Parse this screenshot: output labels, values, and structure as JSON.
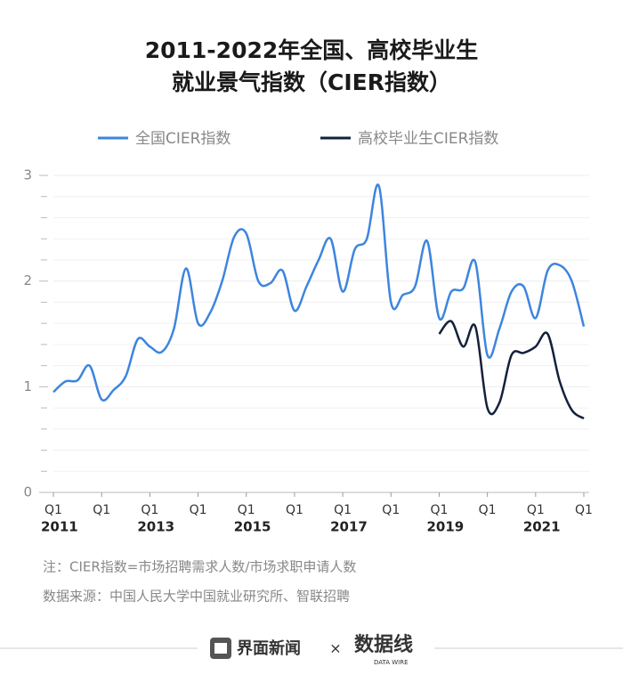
{
  "chart_data": {
    "type": "line",
    "title_lines": [
      "2011-2022年全国、高校毕业生",
      "就业景气指数（CIER指数）"
    ],
    "categories": [
      "Q1",
      null,
      null,
      null,
      "Q1",
      null,
      null,
      null,
      "Q1",
      null,
      null,
      null,
      "Q1",
      null,
      null,
      null,
      "Q1",
      null,
      null,
      null,
      "Q1",
      null,
      null,
      null,
      "Q1",
      null,
      null,
      null,
      "Q1",
      null,
      null,
      null,
      "Q1",
      null,
      null,
      null,
      "Q1",
      null,
      null,
      null,
      "Q1",
      null,
      null,
      null,
      "Q1"
    ],
    "category_years": [
      "2011",
      null,
      null,
      null,
      null,
      null,
      null,
      null,
      "2013",
      null,
      null,
      null,
      null,
      null,
      null,
      null,
      "2015",
      null,
      null,
      null,
      null,
      null,
      null,
      null,
      "2017",
      null,
      null,
      null,
      null,
      null,
      null,
      null,
      "2019",
      null,
      null,
      null,
      null,
      null,
      null,
      null,
      "2021",
      null,
      null,
      null,
      null
    ],
    "series": [
      {
        "name": "全国CIER指数",
        "color": "#3d85de",
        "values": [
          0.95,
          1.05,
          1.06,
          1.2,
          0.88,
          0.97,
          1.1,
          1.45,
          1.38,
          1.33,
          1.55,
          2.12,
          1.6,
          1.7,
          2.0,
          2.42,
          2.45,
          2.0,
          1.98,
          2.1,
          1.72,
          1.95,
          2.2,
          2.4,
          1.9,
          2.3,
          2.4,
          2.9,
          1.8,
          1.87,
          1.95,
          2.38,
          1.65,
          1.9,
          1.93,
          2.18,
          1.3,
          1.55,
          1.9,
          1.95,
          1.65,
          2.1,
          2.15,
          2.0,
          1.57
        ]
      },
      {
        "name": "高校毕业生CIER指数",
        "color": "#14213d",
        "values": [
          null,
          null,
          null,
          null,
          null,
          null,
          null,
          null,
          null,
          null,
          null,
          null,
          null,
          null,
          null,
          null,
          null,
          null,
          null,
          null,
          null,
          null,
          null,
          null,
          null,
          null,
          null,
          null,
          null,
          null,
          null,
          null,
          1.5,
          1.62,
          1.38,
          1.57,
          0.8,
          0.85,
          1.3,
          1.32,
          1.38,
          1.5,
          1.05,
          0.78,
          0.7
        ]
      }
    ],
    "ylim": [
      0,
      3
    ],
    "yticks": [
      0,
      1,
      2,
      3
    ],
    "minor_yticks": [
      0.2,
      0.4,
      0.6,
      0.8,
      1.2,
      1.4,
      1.6,
      1.8,
      2.2,
      2.4,
      2.6,
      2.8
    ],
    "grid": true,
    "note": "注：CIER指数=市场招聘需求人数/市场求职申请人数",
    "source": "数据来源：中国人民大学中国就业研究所、智联招聘"
  },
  "footer": {
    "brand": "界面新闻",
    "separator": "×",
    "partner": "数据线",
    "partner_sub": "DATA WIRE"
  }
}
